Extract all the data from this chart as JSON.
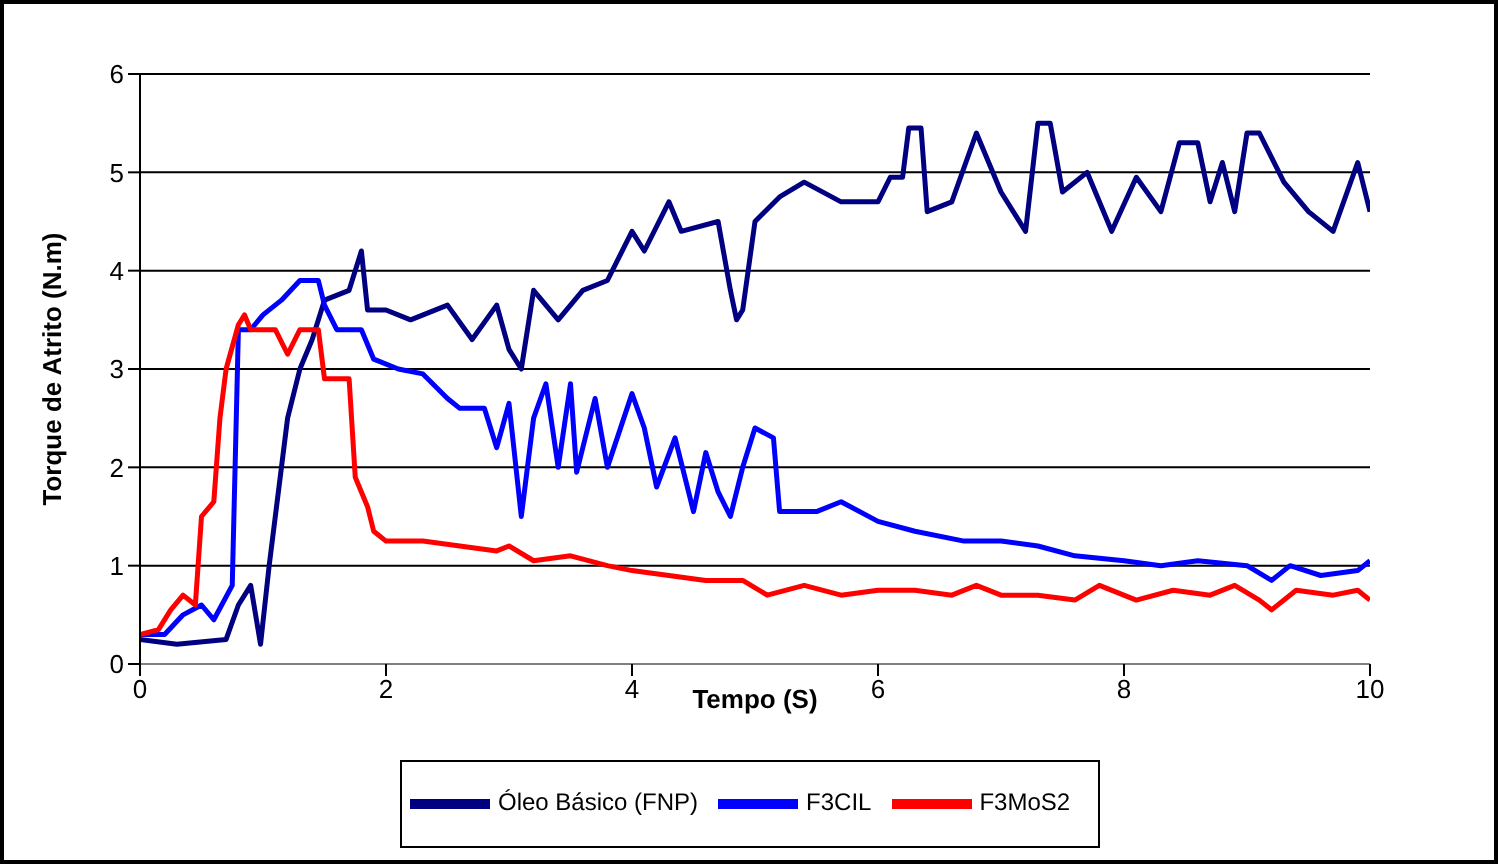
{
  "chart_data": {
    "type": "line",
    "xlabel": "Tempo (S)",
    "ylabel": "Torque de Atrito (N.m)",
    "xlim": [
      0,
      10
    ],
    "xticks": [
      0,
      2,
      4,
      6,
      8,
      10
    ],
    "ylim": [
      0,
      6
    ],
    "yticks": [
      0,
      1,
      2,
      3,
      4,
      5,
      6
    ],
    "grid": "y",
    "legend": "bottom",
    "marker": "none",
    "line_style": "solid",
    "series": [
      {
        "name": "Óleo Básico (FNP)",
        "color": "#000080",
        "x": [
          0,
          0.3,
          0.7,
          0.8,
          0.9,
          0.98,
          1.05,
          1.2,
          1.3,
          1.4,
          1.5,
          1.7,
          1.8,
          1.85,
          2.0,
          2.2,
          2.5,
          2.7,
          2.9,
          3.0,
          3.1,
          3.2,
          3.4,
          3.6,
          3.8,
          4.0,
          4.1,
          4.3,
          4.4,
          4.7,
          4.8,
          4.85,
          4.9,
          5.0,
          5.2,
          5.4,
          5.7,
          6.0,
          6.1,
          6.2,
          6.25,
          6.35,
          6.4,
          6.6,
          6.8,
          7.0,
          7.2,
          7.3,
          7.4,
          7.5,
          7.7,
          7.9,
          8.1,
          8.3,
          8.45,
          8.6,
          8.7,
          8.8,
          8.9,
          9.0,
          9.1,
          9.3,
          9.5,
          9.7,
          9.9,
          10.0
        ],
        "values": [
          0.25,
          0.2,
          0.25,
          0.6,
          0.8,
          0.2,
          1.0,
          2.5,
          3.0,
          3.3,
          3.7,
          3.8,
          4.2,
          3.6,
          3.6,
          3.5,
          3.65,
          3.3,
          3.65,
          3.2,
          3.0,
          3.8,
          3.5,
          3.8,
          3.9,
          4.4,
          4.2,
          4.7,
          4.4,
          4.5,
          3.8,
          3.5,
          3.6,
          4.5,
          4.75,
          4.9,
          4.7,
          4.7,
          4.95,
          4.95,
          5.45,
          5.45,
          4.6,
          4.7,
          5.4,
          4.8,
          4.4,
          5.5,
          5.5,
          4.8,
          5.0,
          4.4,
          4.95,
          4.6,
          5.3,
          5.3,
          4.7,
          5.1,
          4.6,
          5.4,
          5.4,
          4.9,
          4.6,
          4.4,
          5.1,
          4.6
        ]
      },
      {
        "name": "F3CIL",
        "color": "#0000ff",
        "x": [
          0,
          0.2,
          0.35,
          0.5,
          0.6,
          0.75,
          0.8,
          0.9,
          1.0,
          1.15,
          1.3,
          1.45,
          1.5,
          1.6,
          1.8,
          1.9,
          2.1,
          2.3,
          2.5,
          2.6,
          2.8,
          2.9,
          3.0,
          3.1,
          3.2,
          3.3,
          3.4,
          3.5,
          3.55,
          3.7,
          3.8,
          4.0,
          4.1,
          4.2,
          4.35,
          4.5,
          4.6,
          4.7,
          4.8,
          4.9,
          5.0,
          5.15,
          5.2,
          5.5,
          5.7,
          6.0,
          6.3,
          6.7,
          7.0,
          7.3,
          7.6,
          8.0,
          8.3,
          8.6,
          9.0,
          9.2,
          9.35,
          9.6,
          9.9,
          10
        ],
        "values": [
          0.3,
          0.3,
          0.5,
          0.6,
          0.45,
          0.8,
          3.4,
          3.4,
          3.55,
          3.7,
          3.9,
          3.9,
          3.65,
          3.4,
          3.4,
          3.1,
          3.0,
          2.95,
          2.7,
          2.6,
          2.6,
          2.2,
          2.65,
          1.5,
          2.5,
          2.85,
          2.0,
          2.85,
          1.95,
          2.7,
          2.0,
          2.75,
          2.4,
          1.8,
          2.3,
          1.55,
          2.15,
          1.75,
          1.5,
          2.0,
          2.4,
          2.3,
          1.55,
          1.55,
          1.65,
          1.45,
          1.35,
          1.25,
          1.25,
          1.2,
          1.1,
          1.05,
          1.0,
          1.05,
          1.0,
          0.85,
          1.0,
          0.9,
          0.95,
          1.05
        ]
      },
      {
        "name": "F3MoS2",
        "color": "#ff0000",
        "x": [
          0,
          0.15,
          0.25,
          0.35,
          0.45,
          0.5,
          0.6,
          0.65,
          0.7,
          0.8,
          0.85,
          0.9,
          1.1,
          1.2,
          1.3,
          1.45,
          1.5,
          1.7,
          1.75,
          1.85,
          1.9,
          2.0,
          2.3,
          2.6,
          2.9,
          3.0,
          3.2,
          3.5,
          3.8,
          4.0,
          4.3,
          4.6,
          4.9,
          5.1,
          5.4,
          5.7,
          6.0,
          6.3,
          6.6,
          6.8,
          7.0,
          7.3,
          7.6,
          7.8,
          8.1,
          8.4,
          8.7,
          8.9,
          9.1,
          9.2,
          9.4,
          9.7,
          9.9,
          10
        ],
        "values": [
          0.3,
          0.35,
          0.55,
          0.7,
          0.6,
          1.5,
          1.65,
          2.5,
          3.0,
          3.45,
          3.55,
          3.4,
          3.4,
          3.15,
          3.4,
          3.4,
          2.9,
          2.9,
          1.9,
          1.6,
          1.35,
          1.25,
          1.25,
          1.2,
          1.15,
          1.2,
          1.05,
          1.1,
          1.0,
          0.95,
          0.9,
          0.85,
          0.85,
          0.7,
          0.8,
          0.7,
          0.75,
          0.75,
          0.7,
          0.8,
          0.7,
          0.7,
          0.65,
          0.8,
          0.65,
          0.75,
          0.7,
          0.8,
          0.65,
          0.55,
          0.75,
          0.7,
          0.75,
          0.65
        ]
      }
    ]
  }
}
